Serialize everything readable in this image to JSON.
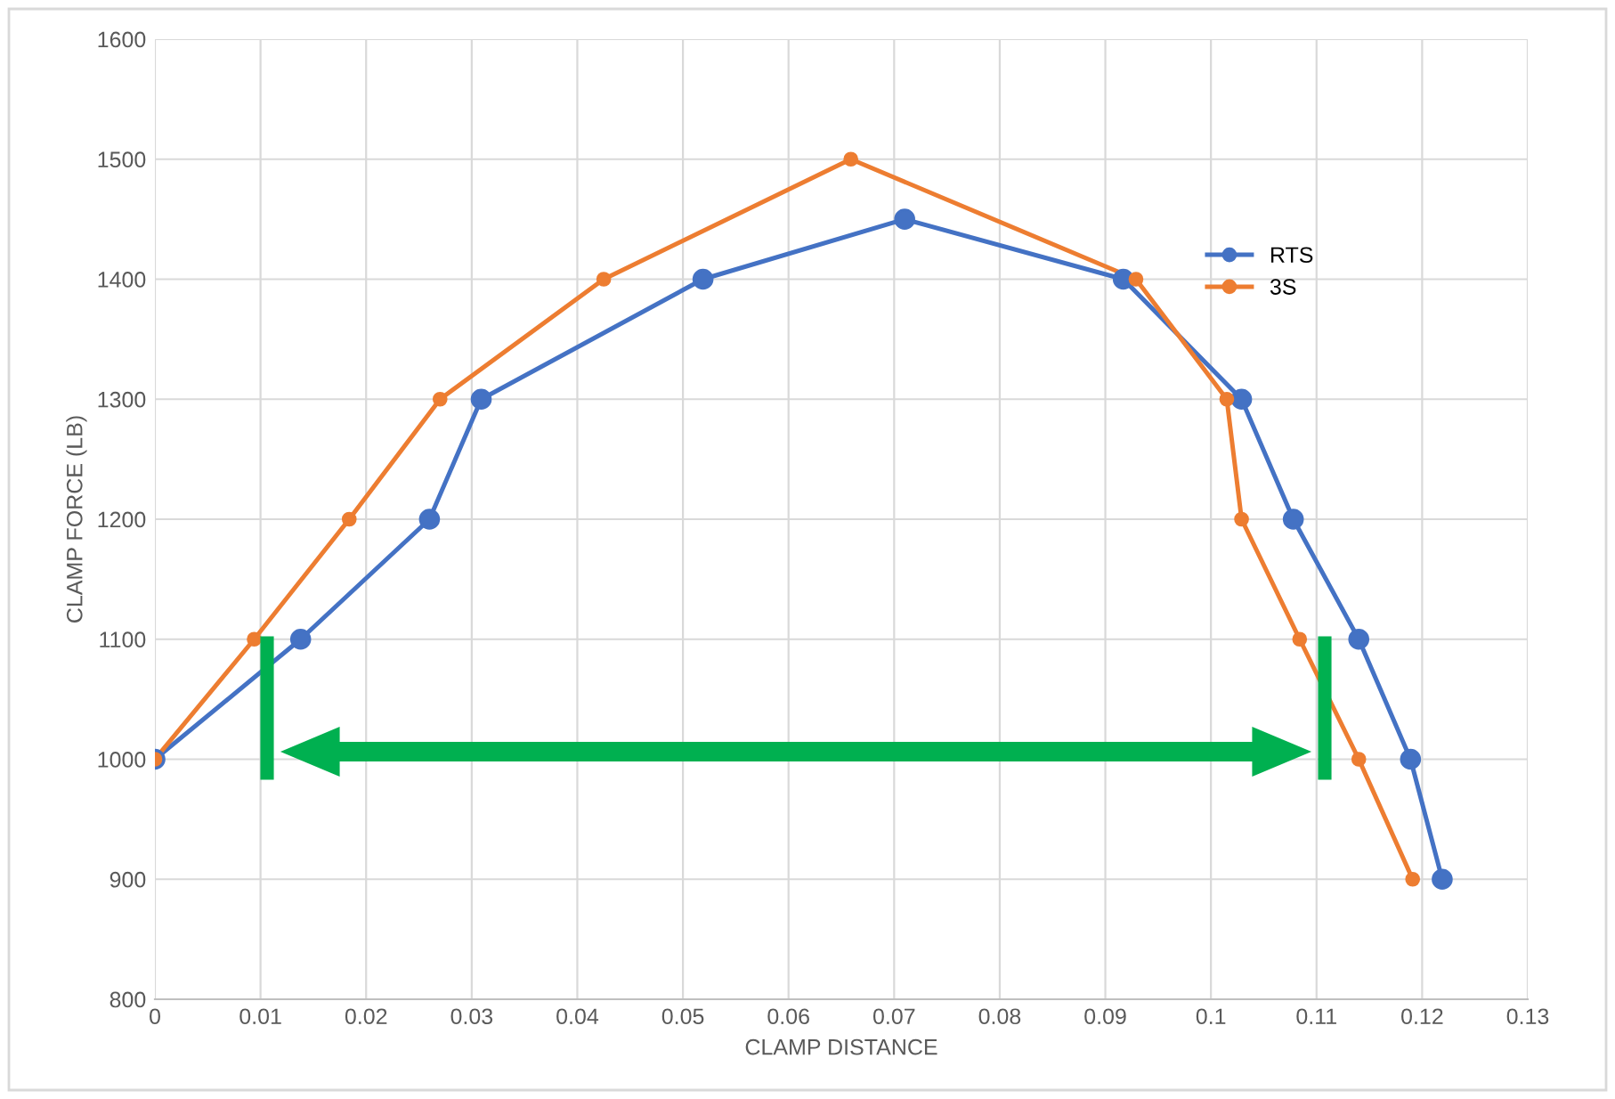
{
  "chart_data": {
    "type": "line",
    "xlabel": "CLAMP DISTANCE",
    "ylabel": "CLAMP FORCE (LB)",
    "xlim": [
      0,
      0.13
    ],
    "xticks": [
      0,
      0.01,
      0.02,
      0.03,
      0.04,
      0.05,
      0.06,
      0.07,
      0.08,
      0.09,
      0.1,
      0.11,
      0.12,
      0.13
    ],
    "ylim": [
      800,
      1600
    ],
    "yticks": [
      800,
      900,
      1000,
      1100,
      1200,
      1300,
      1400,
      1500,
      1600
    ],
    "grid": true,
    "legend": "top right",
    "marker": "circle",
    "line_style": "solid",
    "series": [
      {
        "name": "RTS",
        "color": "#4472c4",
        "x": [
          0,
          0.0138,
          0.026,
          0.0309,
          0.0519,
          0.071,
          0.0917,
          0.1029,
          0.1078,
          0.114,
          0.1189,
          0.1219
        ],
        "values": [
          1000,
          1100,
          1200,
          1300,
          1400,
          1450,
          1400,
          1300,
          1200,
          1100,
          1000,
          900
        ]
      },
      {
        "name": "3S",
        "color": "#ed7d31",
        "x": [
          0,
          0.0094,
          0.0184,
          0.027,
          0.0425,
          0.0659,
          0.0929,
          0.1015,
          0.1029,
          0.1084,
          0.114,
          0.1191
        ],
        "values": [
          1000,
          1100,
          1200,
          1300,
          1400,
          1500,
          1400,
          1300,
          1200,
          1100,
          1000,
          900
        ]
      }
    ]
  }
}
